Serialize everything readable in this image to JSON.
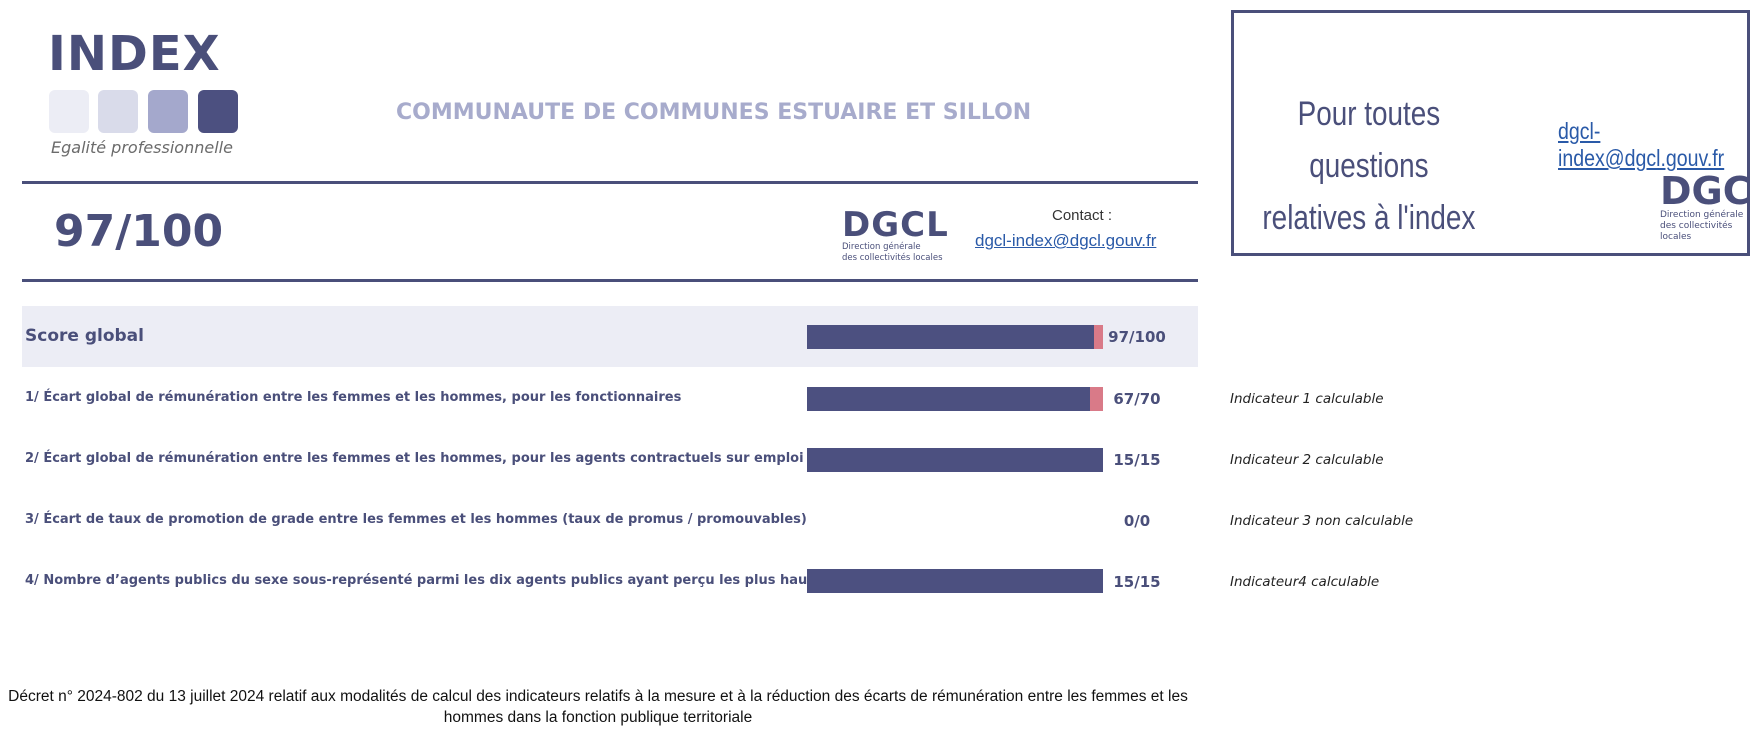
{
  "logo": {
    "title": "INDEX",
    "subtitle": "Egalité professionnelle"
  },
  "header": {
    "organization": "COMMUNAUTE DE COMMUNES ESTUAIRE ET SILLON",
    "score": "97/100",
    "dgcl_logo": {
      "acronym": "DGCL",
      "line1": "Direction générale",
      "line2": "des collectivités locales"
    },
    "contact_label": "Contact :",
    "contact_email": "dgcl-index@dgcl.gouv.fr"
  },
  "questions_box": {
    "line1": "Pour toutes questions",
    "line2": "relatives à l'index",
    "email": "dgcl-index@dgcl.gouv.fr",
    "logo_acronym": "DGCL",
    "logo_line1": "Direction générale",
    "logo_line2": "des collectivités locales"
  },
  "colors": {
    "primary": "#4c5080",
    "light": "#ecedf5",
    "accent_gap": "#d97a88",
    "link": "#2a5aa8"
  },
  "rows": [
    {
      "label": "Score global",
      "value_text": "97/100",
      "score": 97,
      "max": 100,
      "note": ""
    },
    {
      "label": "1/ Écart global de rémunération entre les femmes et les hommes, pour les fonctionnaires",
      "value_text": "67/70",
      "score": 67,
      "max": 70,
      "note": "Indicateur 1 calculable"
    },
    {
      "label": "2/ Écart global de rémunération entre les femmes et les hommes, pour les agents contractuels sur emploi permanent",
      "value_text": "15/15",
      "score": 15,
      "max": 15,
      "note": "Indicateur 2 calculable"
    },
    {
      "label": "3/ Écart de taux de promotion de grade entre les femmes et les hommes (taux de promus / promouvables)",
      "value_text": "0/0",
      "score": 0,
      "max": 0,
      "note": "Indicateur 3 non calculable"
    },
    {
      "label": "4/ Nombre d’agents publics du sexe sous-représenté parmi les dix agents publics ayant perçu les plus hautes rémunérations",
      "value_text": "15/15",
      "score": 15,
      "max": 15,
      "note": "Indicateur4 calculable"
    }
  ],
  "footer": {
    "line1": "Décret n° 2024-802 du 13 juillet 2024 relatif aux modalités de calcul des indicateurs relatifs à la mesure et à la réduction des écarts de rémunération entre les femmes et les",
    "line2": "hommes dans la fonction publique territoriale"
  }
}
